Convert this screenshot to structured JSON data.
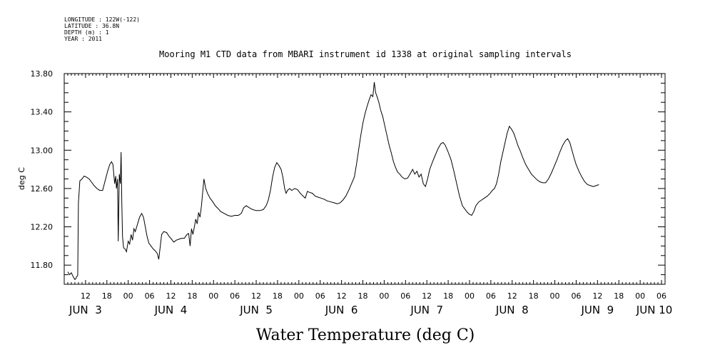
{
  "meta": {
    "longitude": "LONGITUDE : 122W(-122)",
    "latitude": "LATITUDE : 36.8N",
    "depth": "DEPTH (m) : 1",
    "year": "YEAR : 2011"
  },
  "chart_data": {
    "type": "line",
    "title": "Mooring M1 CTD data from MBARI instrument id 1338 at original sampling intervals",
    "xlabel": "Water Temperature (deg C)",
    "ylabel": "deg C",
    "xlim": [
      6,
      175
    ],
    "ylim": [
      11.6,
      13.8
    ],
    "yticks": [
      11.8,
      12.2,
      12.6,
      13.0,
      13.4,
      13.8
    ],
    "ytick_labels": [
      "11.80",
      "12.20",
      "12.60",
      "13.00",
      "13.40",
      "13.80"
    ],
    "hour_ticks": [
      {
        "x": 12,
        "label": "12"
      },
      {
        "x": 18,
        "label": "18"
      },
      {
        "x": 24,
        "label": "00"
      },
      {
        "x": 30,
        "label": "06"
      },
      {
        "x": 36,
        "label": "12"
      },
      {
        "x": 42,
        "label": "18"
      },
      {
        "x": 48,
        "label": "00"
      },
      {
        "x": 54,
        "label": "06"
      },
      {
        "x": 60,
        "label": "12"
      },
      {
        "x": 66,
        "label": "18"
      },
      {
        "x": 72,
        "label": "00"
      },
      {
        "x": 78,
        "label": "06"
      },
      {
        "x": 84,
        "label": "12"
      },
      {
        "x": 90,
        "label": "18"
      },
      {
        "x": 96,
        "label": "00"
      },
      {
        "x": 102,
        "label": "06"
      },
      {
        "x": 108,
        "label": "12"
      },
      {
        "x": 114,
        "label": "18"
      },
      {
        "x": 120,
        "label": "00"
      },
      {
        "x": 126,
        "label": "06"
      },
      {
        "x": 132,
        "label": "12"
      },
      {
        "x": 138,
        "label": "18"
      },
      {
        "x": 144,
        "label": "00"
      },
      {
        "x": 150,
        "label": "06"
      },
      {
        "x": 156,
        "label": "12"
      },
      {
        "x": 162,
        "label": "18"
      },
      {
        "x": 168,
        "label": "00"
      },
      {
        "x": 174,
        "label": "06"
      }
    ],
    "date_labels": [
      {
        "x": 12,
        "label": "JUN  3"
      },
      {
        "x": 36,
        "label": "JUN  4"
      },
      {
        "x": 60,
        "label": "JUN  5"
      },
      {
        "x": 84,
        "label": "JUN  6"
      },
      {
        "x": 108,
        "label": "JUN  7"
      },
      {
        "x": 132,
        "label": "JUN  8"
      },
      {
        "x": 156,
        "label": "JUN  9"
      },
      {
        "x": 172,
        "label": "JUN 10"
      }
    ],
    "grid": false,
    "series": [
      {
        "color": "#000000",
        "points": [
          [
            7.0,
            11.73
          ],
          [
            7.5,
            11.7
          ],
          [
            8.0,
            11.72
          ],
          [
            8.5,
            11.68
          ],
          [
            9.0,
            11.65
          ],
          [
            9.3,
            11.66
          ],
          [
            9.5,
            11.68
          ],
          [
            9.8,
            11.69
          ],
          [
            10.0,
            12.45
          ],
          [
            10.4,
            12.68
          ],
          [
            11.0,
            12.7
          ],
          [
            11.6,
            12.73
          ],
          [
            12.2,
            12.72
          ],
          [
            13.0,
            12.7
          ],
          [
            13.6,
            12.67
          ],
          [
            14.4,
            12.63
          ],
          [
            15.2,
            12.6
          ],
          [
            16.0,
            12.58
          ],
          [
            16.8,
            12.58
          ],
          [
            17.5,
            12.68
          ],
          [
            18.2,
            12.78
          ],
          [
            18.8,
            12.85
          ],
          [
            19.3,
            12.88
          ],
          [
            19.7,
            12.85
          ],
          [
            20.0,
            12.72
          ],
          [
            20.2,
            12.65
          ],
          [
            20.5,
            12.73
          ],
          [
            20.7,
            12.6
          ],
          [
            21.0,
            12.7
          ],
          [
            21.2,
            12.05
          ],
          [
            21.5,
            12.75
          ],
          [
            21.8,
            12.65
          ],
          [
            22.0,
            12.98
          ],
          [
            22.2,
            12.45
          ],
          [
            22.4,
            12.1
          ],
          [
            22.7,
            11.98
          ],
          [
            23.1,
            11.97
          ],
          [
            23.5,
            11.94
          ],
          [
            24.0,
            12.05
          ],
          [
            24.4,
            12.02
          ],
          [
            24.8,
            12.12
          ],
          [
            25.2,
            12.06
          ],
          [
            25.6,
            12.18
          ],
          [
            26.0,
            12.15
          ],
          [
            26.4,
            12.2
          ],
          [
            26.8,
            12.25
          ],
          [
            27.2,
            12.3
          ],
          [
            27.8,
            12.34
          ],
          [
            28.3,
            12.3
          ],
          [
            28.8,
            12.2
          ],
          [
            29.3,
            12.1
          ],
          [
            29.8,
            12.03
          ],
          [
            30.4,
            12.0
          ],
          [
            31.0,
            11.97
          ],
          [
            31.6,
            11.95
          ],
          [
            32.2,
            11.92
          ],
          [
            32.6,
            11.86
          ],
          [
            33.0,
            11.99
          ],
          [
            33.4,
            12.12
          ],
          [
            34.0,
            12.15
          ],
          [
            34.8,
            12.14
          ],
          [
            35.5,
            12.1
          ],
          [
            36.2,
            12.07
          ],
          [
            36.8,
            12.04
          ],
          [
            37.5,
            12.06
          ],
          [
            38.2,
            12.07
          ],
          [
            39.0,
            12.08
          ],
          [
            39.8,
            12.08
          ],
          [
            40.5,
            12.12
          ],
          [
            41.0,
            12.13
          ],
          [
            41.4,
            12.0
          ],
          [
            41.8,
            12.18
          ],
          [
            42.2,
            12.12
          ],
          [
            42.6,
            12.2
          ],
          [
            43.0,
            12.28
          ],
          [
            43.4,
            12.23
          ],
          [
            43.8,
            12.35
          ],
          [
            44.2,
            12.3
          ],
          [
            44.6,
            12.42
          ],
          [
            45.0,
            12.58
          ],
          [
            45.3,
            12.7
          ],
          [
            45.8,
            12.6
          ],
          [
            46.3,
            12.55
          ],
          [
            47.0,
            12.5
          ],
          [
            47.8,
            12.46
          ],
          [
            48.5,
            12.42
          ],
          [
            49.3,
            12.39
          ],
          [
            50.0,
            12.36
          ],
          [
            51.0,
            12.34
          ],
          [
            52.0,
            12.32
          ],
          [
            53.0,
            12.31
          ],
          [
            54.0,
            12.32
          ],
          [
            55.0,
            12.32
          ],
          [
            55.8,
            12.34
          ],
          [
            56.5,
            12.4
          ],
          [
            57.2,
            12.42
          ],
          [
            58.0,
            12.4
          ],
          [
            59.0,
            12.38
          ],
          [
            60.0,
            12.37
          ],
          [
            61.0,
            12.37
          ],
          [
            62.0,
            12.38
          ],
          [
            62.8,
            12.42
          ],
          [
            63.4,
            12.48
          ],
          [
            64.0,
            12.58
          ],
          [
            64.6,
            12.72
          ],
          [
            65.2,
            12.82
          ],
          [
            65.8,
            12.87
          ],
          [
            66.4,
            12.84
          ],
          [
            67.0,
            12.8
          ],
          [
            67.5,
            12.72
          ],
          [
            68.0,
            12.6
          ],
          [
            68.4,
            12.55
          ],
          [
            68.8,
            12.58
          ],
          [
            69.4,
            12.6
          ],
          [
            70.0,
            12.58
          ],
          [
            70.8,
            12.6
          ],
          [
            71.6,
            12.59
          ],
          [
            72.4,
            12.55
          ],
          [
            73.2,
            12.52
          ],
          [
            73.8,
            12.5
          ],
          [
            74.4,
            12.57
          ],
          [
            75.0,
            12.56
          ],
          [
            75.8,
            12.55
          ],
          [
            76.6,
            12.52
          ],
          [
            77.4,
            12.51
          ],
          [
            78.2,
            12.5
          ],
          [
            79.0,
            12.49
          ],
          [
            80.0,
            12.47
          ],
          [
            81.0,
            12.46
          ],
          [
            82.0,
            12.45
          ],
          [
            82.8,
            12.44
          ],
          [
            83.6,
            12.45
          ],
          [
            84.4,
            12.48
          ],
          [
            85.2,
            12.52
          ],
          [
            86.0,
            12.58
          ],
          [
            86.8,
            12.65
          ],
          [
            87.6,
            12.72
          ],
          [
            88.2,
            12.85
          ],
          [
            88.8,
            13.0
          ],
          [
            89.4,
            13.15
          ],
          [
            90.0,
            13.28
          ],
          [
            90.6,
            13.38
          ],
          [
            91.2,
            13.46
          ],
          [
            91.8,
            13.53
          ],
          [
            92.3,
            13.58
          ],
          [
            92.8,
            13.56
          ],
          [
            93.2,
            13.71
          ],
          [
            93.6,
            13.6
          ],
          [
            94.0,
            13.56
          ],
          [
            94.5,
            13.5
          ],
          [
            95.0,
            13.42
          ],
          [
            95.6,
            13.35
          ],
          [
            96.2,
            13.25
          ],
          [
            96.8,
            13.15
          ],
          [
            97.4,
            13.05
          ],
          [
            98.0,
            12.97
          ],
          [
            98.6,
            12.88
          ],
          [
            99.2,
            12.82
          ],
          [
            99.8,
            12.77
          ],
          [
            100.4,
            12.75
          ],
          [
            101.0,
            12.72
          ],
          [
            101.8,
            12.7
          ],
          [
            102.6,
            12.71
          ],
          [
            103.4,
            12.76
          ],
          [
            104.0,
            12.8
          ],
          [
            104.6,
            12.75
          ],
          [
            105.2,
            12.78
          ],
          [
            105.8,
            12.72
          ],
          [
            106.4,
            12.75
          ],
          [
            107.0,
            12.65
          ],
          [
            107.6,
            12.62
          ],
          [
            108.2,
            12.7
          ],
          [
            108.8,
            12.8
          ],
          [
            109.6,
            12.88
          ],
          [
            110.4,
            12.95
          ],
          [
            111.2,
            13.02
          ],
          [
            112.0,
            13.07
          ],
          [
            112.6,
            13.08
          ],
          [
            113.2,
            13.05
          ],
          [
            114.0,
            12.98
          ],
          [
            114.8,
            12.9
          ],
          [
            115.6,
            12.78
          ],
          [
            116.4,
            12.65
          ],
          [
            117.2,
            12.52
          ],
          [
            118.0,
            12.42
          ],
          [
            118.8,
            12.38
          ],
          [
            119.4,
            12.35
          ],
          [
            120.0,
            12.33
          ],
          [
            120.6,
            12.32
          ],
          [
            121.2,
            12.36
          ],
          [
            121.8,
            12.42
          ],
          [
            122.6,
            12.46
          ],
          [
            123.4,
            12.48
          ],
          [
            124.2,
            12.5
          ],
          [
            125.0,
            12.52
          ],
          [
            125.8,
            12.55
          ],
          [
            126.4,
            12.58
          ],
          [
            127.0,
            12.6
          ],
          [
            127.6,
            12.65
          ],
          [
            128.2,
            12.75
          ],
          [
            128.8,
            12.88
          ],
          [
            129.4,
            12.98
          ],
          [
            130.0,
            13.08
          ],
          [
            130.6,
            13.18
          ],
          [
            131.2,
            13.25
          ],
          [
            131.8,
            13.22
          ],
          [
            132.4,
            13.18
          ],
          [
            133.0,
            13.12
          ],
          [
            133.6,
            13.05
          ],
          [
            134.2,
            13.0
          ],
          [
            135.0,
            12.92
          ],
          [
            135.8,
            12.85
          ],
          [
            136.6,
            12.8
          ],
          [
            137.4,
            12.75
          ],
          [
            138.2,
            12.72
          ],
          [
            139.0,
            12.69
          ],
          [
            139.8,
            12.67
          ],
          [
            140.6,
            12.66
          ],
          [
            141.4,
            12.66
          ],
          [
            142.2,
            12.7
          ],
          [
            143.0,
            12.76
          ],
          [
            143.8,
            12.83
          ],
          [
            144.6,
            12.9
          ],
          [
            145.4,
            12.98
          ],
          [
            146.2,
            13.05
          ],
          [
            147.0,
            13.1
          ],
          [
            147.6,
            13.12
          ],
          [
            148.2,
            13.08
          ],
          [
            148.8,
            13.0
          ],
          [
            149.4,
            12.92
          ],
          [
            150.0,
            12.85
          ],
          [
            150.8,
            12.78
          ],
          [
            151.6,
            12.72
          ],
          [
            152.4,
            12.67
          ],
          [
            153.2,
            12.64
          ],
          [
            154.0,
            12.63
          ],
          [
            154.8,
            12.62
          ],
          [
            155.6,
            12.63
          ],
          [
            156.4,
            12.64
          ]
        ]
      }
    ]
  }
}
